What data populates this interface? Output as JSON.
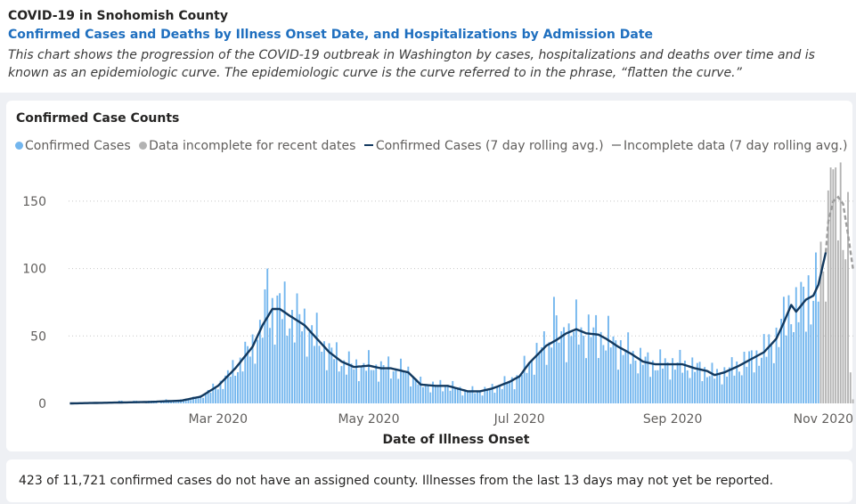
{
  "header": {
    "title": "COVID-19 in Snohomish County",
    "subtitle": "Confirmed Cases and Deaths by Illness Onset Date, and Hospitalizations by Admission Date",
    "description": "This chart shows the progression of the COVID-19 outbreak in Washington by cases, hospitalizations and deaths over time and is known as an epidemiologic curve. The epidemiologic curve is the curve referred to in the phrase, “flatten the curve.”"
  },
  "legend": {
    "confirmed": "Confirmed Cases",
    "incomplete": "Data incomplete for recent dates",
    "rolling": "Confirmed Cases (7 day rolling avg.)",
    "incomplete_rolling": "Incomplete data (7 day rolling avg.)"
  },
  "footer": {
    "note": "423 of 11,721 confirmed cases do not have an assigned county. Illnesses from the last 13 days may not yet be reported."
  },
  "colors": {
    "bar": "#73b6ee",
    "bar_incomplete": "#b3b3b3",
    "line": "#12395f",
    "line_incomplete": "#9e9e9e",
    "title_blue": "#1f6fbf"
  },
  "chart_data": {
    "type": "bar",
    "title": "Confirmed Case Counts",
    "xlabel": "Date of Illness Onset",
    "ylabel": "",
    "ylim": [
      0,
      175
    ],
    "yticks": [
      0,
      50,
      100,
      150
    ],
    "x_tick_labels": [
      {
        "label": "Mar 2020",
        "date": "2020-03-01"
      },
      {
        "label": "May 2020",
        "date": "2020-05-01"
      },
      {
        "label": "Jul 2020",
        "date": "2020-07-01"
      },
      {
        "label": "Sep 2020",
        "date": "2020-09-01"
      },
      {
        "label": "Nov 2020",
        "date": "2020-11-01"
      }
    ],
    "x_start": "2020-01-01",
    "x_end": "2020-11-13",
    "incomplete_from": "2020-10-31",
    "grid": true,
    "legend_position": "top-left",
    "rolling_avg_knots": [
      [
        "2020-01-01",
        0
      ],
      [
        "2020-02-01",
        1
      ],
      [
        "2020-02-15",
        2
      ],
      [
        "2020-02-23",
        5
      ],
      [
        "2020-03-01",
        13
      ],
      [
        "2020-03-08",
        26
      ],
      [
        "2020-03-15",
        42
      ],
      [
        "2020-03-19",
        58
      ],
      [
        "2020-03-23",
        70
      ],
      [
        "2020-03-26",
        70
      ],
      [
        "2020-03-30",
        65
      ],
      [
        "2020-04-05",
        58
      ],
      [
        "2020-04-10",
        48
      ],
      [
        "2020-04-15",
        38
      ],
      [
        "2020-04-20",
        31
      ],
      [
        "2020-04-25",
        27
      ],
      [
        "2020-05-01",
        28
      ],
      [
        "2020-05-06",
        26
      ],
      [
        "2020-05-10",
        26
      ],
      [
        "2020-05-17",
        23
      ],
      [
        "2020-05-22",
        14
      ],
      [
        "2020-05-28",
        13
      ],
      [
        "2020-06-02",
        13
      ],
      [
        "2020-06-06",
        11
      ],
      [
        "2020-06-10",
        9
      ],
      [
        "2020-06-15",
        9
      ],
      [
        "2020-06-20",
        11
      ],
      [
        "2020-06-27",
        16
      ],
      [
        "2020-07-01",
        20
      ],
      [
        "2020-07-05",
        30
      ],
      [
        "2020-07-12",
        43
      ],
      [
        "2020-07-16",
        47
      ],
      [
        "2020-07-20",
        52
      ],
      [
        "2020-07-24",
        55
      ],
      [
        "2020-07-28",
        52
      ],
      [
        "2020-08-02",
        51
      ],
      [
        "2020-08-05",
        48
      ],
      [
        "2020-08-10",
        42
      ],
      [
        "2020-08-15",
        37
      ],
      [
        "2020-08-20",
        31
      ],
      [
        "2020-08-25",
        29
      ],
      [
        "2020-08-30",
        29
      ],
      [
        "2020-09-05",
        29
      ],
      [
        "2020-09-10",
        26
      ],
      [
        "2020-09-15",
        24
      ],
      [
        "2020-09-18",
        21
      ],
      [
        "2020-09-22",
        23
      ],
      [
        "2020-09-28",
        28
      ],
      [
        "2020-10-03",
        33
      ],
      [
        "2020-10-08",
        38
      ],
      [
        "2020-10-13",
        48
      ],
      [
        "2020-10-16",
        60
      ],
      [
        "2020-10-19",
        73
      ],
      [
        "2020-10-21",
        68
      ],
      [
        "2020-10-25",
        77
      ],
      [
        "2020-10-28",
        80
      ],
      [
        "2020-10-30",
        88
      ],
      [
        "2020-11-02",
        112
      ]
    ],
    "rolling_avg_incomplete_knots": [
      [
        "2020-11-02",
        112
      ],
      [
        "2020-11-03",
        135
      ],
      [
        "2020-11-05",
        150
      ],
      [
        "2020-11-07",
        153
      ],
      [
        "2020-11-09",
        148
      ],
      [
        "2020-11-11",
        125
      ],
      [
        "2020-11-13",
        100
      ]
    ],
    "peaks": [
      {
        "date": "2020-03-21",
        "value": 100
      },
      {
        "date": "2020-07-15",
        "value": 79
      },
      {
        "date": "2020-10-26",
        "value": 95
      },
      {
        "date": "2020-11-04",
        "value": 175
      },
      {
        "date": "2020-11-06",
        "value": 175
      }
    ]
  }
}
